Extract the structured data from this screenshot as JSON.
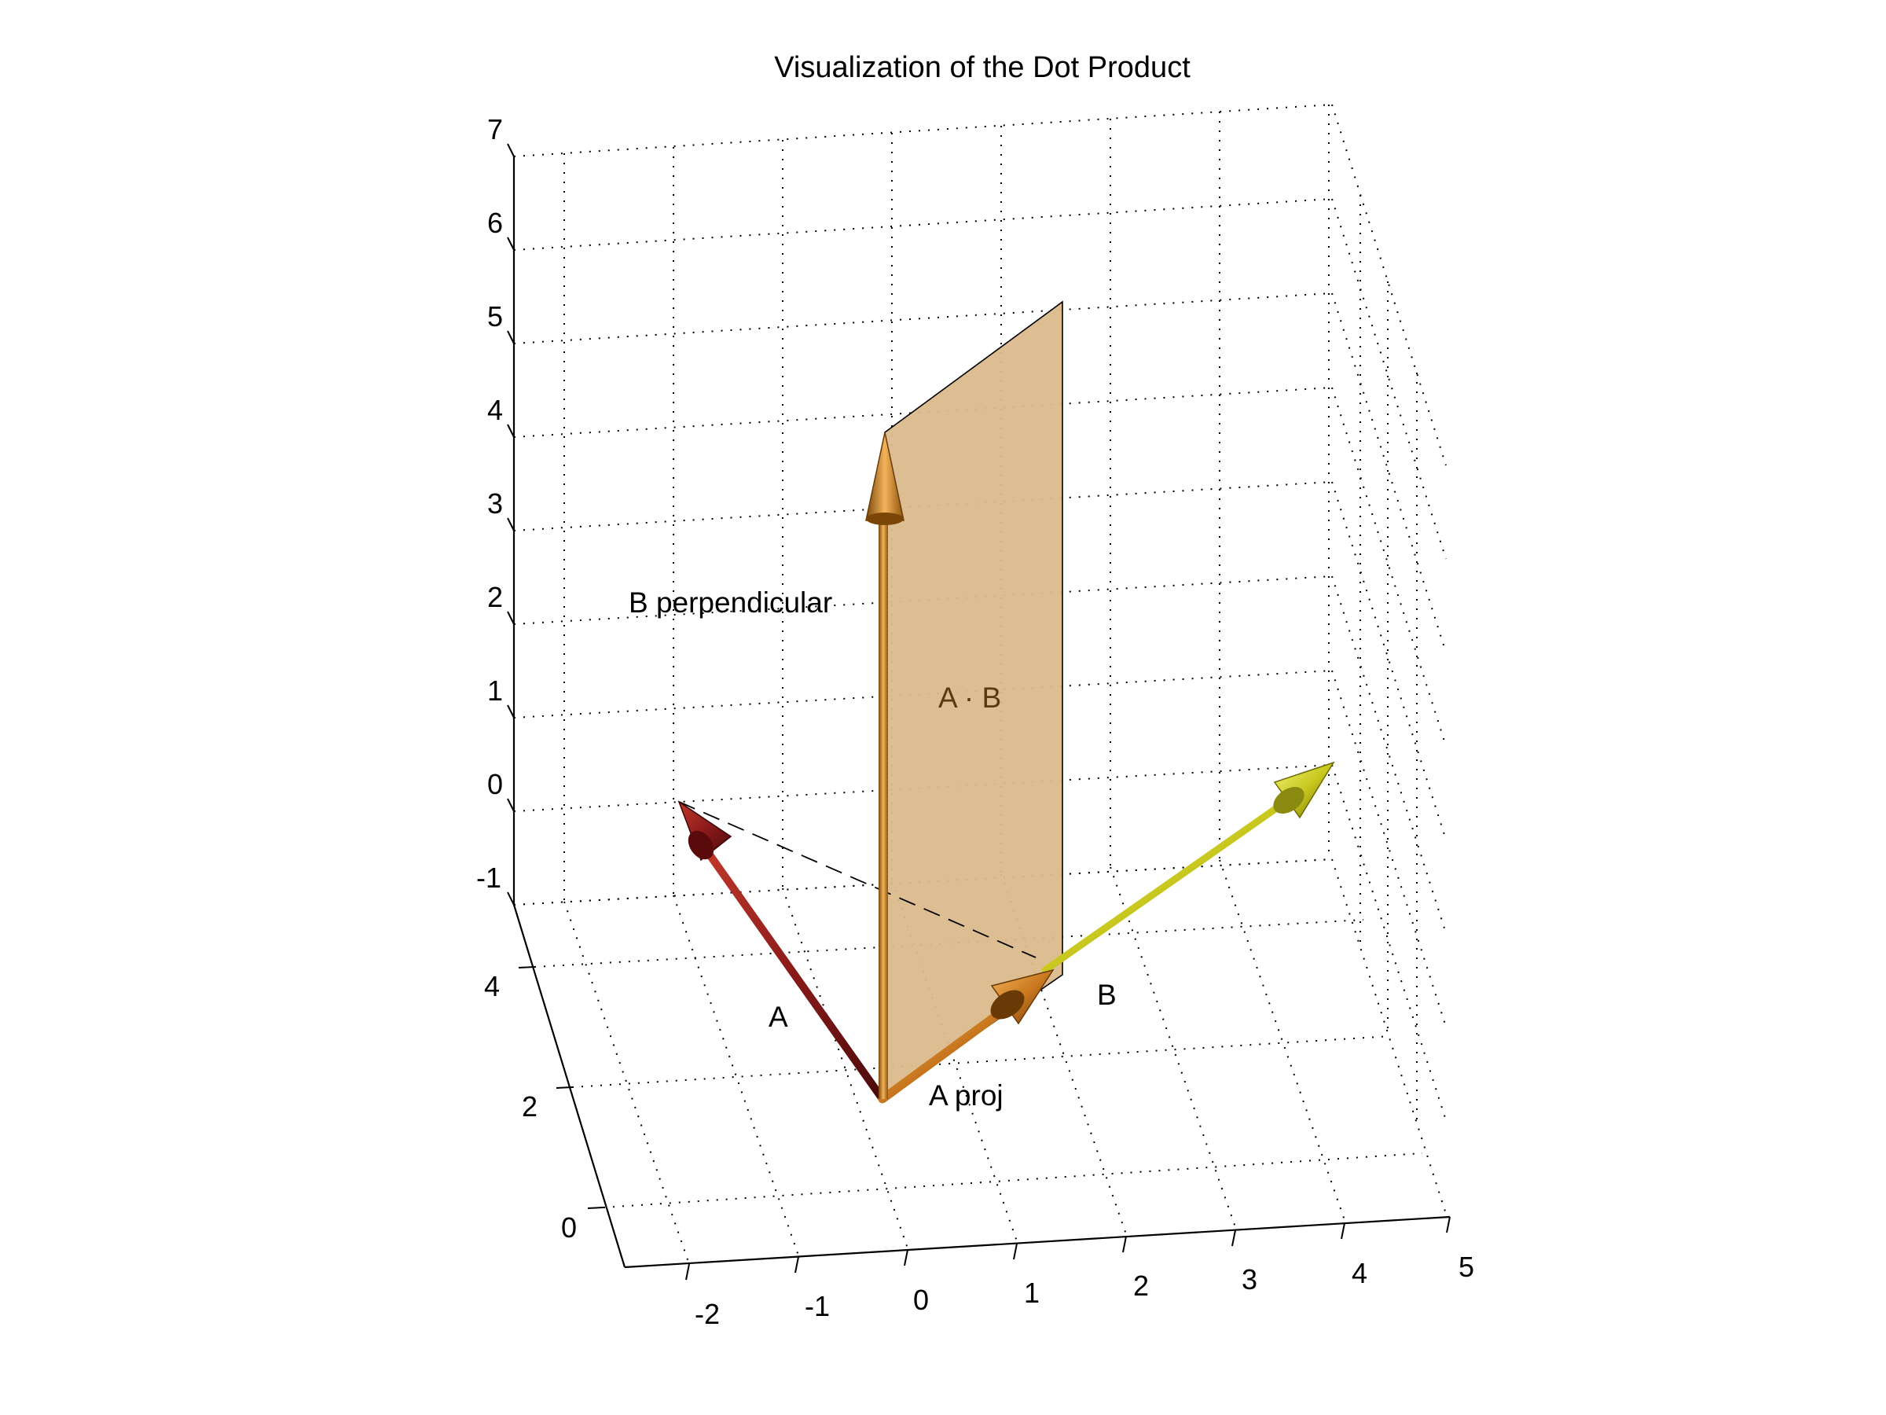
{
  "title": "Visualization of the Dot Product",
  "axes": {
    "x_ticks": [
      "-2",
      "-1",
      "0",
      "1",
      "2",
      "3",
      "4",
      "5"
    ],
    "y_ticks": [
      "0",
      "2",
      "4"
    ],
    "z_ticks": [
      "-1",
      "0",
      "1",
      "2",
      "3",
      "4",
      "5",
      "6",
      "7"
    ],
    "grid": true
  },
  "labels": {
    "vector_a": "A",
    "vector_b": "B",
    "a_proj": "A proj",
    "b_perpendicular": "B perpendicular",
    "dot_product": "A · B"
  },
  "colors": {
    "vector_a": "#8b1a1a",
    "vector_b": "#c8c81e",
    "a_proj": "#c9781f",
    "b_perpendicular": "#b8711c",
    "plane_fill": "#dbbb8d",
    "dot_product_label": "#5a3a10"
  }
}
